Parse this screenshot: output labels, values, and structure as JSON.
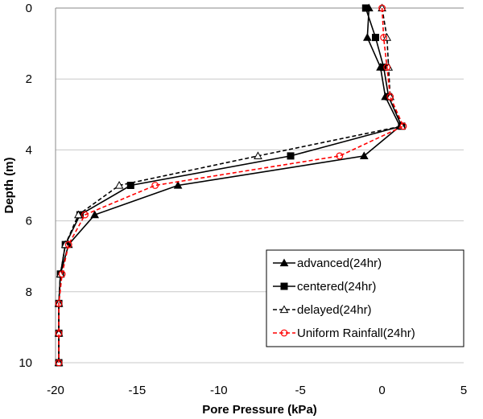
{
  "chart_data": {
    "type": "line",
    "xlabel": "Pore Pressure (kPa)",
    "ylabel": "Depth (m)",
    "xlim": [
      -20,
      5
    ],
    "ylim": [
      0,
      10
    ],
    "y_inverted": true,
    "x_ticks": [
      -20,
      -15,
      -10,
      -5,
      0,
      5
    ],
    "y_ticks": [
      0,
      2,
      4,
      6,
      8,
      10
    ],
    "grid": "horizontal-major",
    "legend_position": "bottom-right",
    "series": [
      {
        "name": "advanced(24hr)",
        "color": "#000000",
        "dash": "solid",
        "marker": "triangle-filled",
        "points": [
          [
            -0.8,
            0
          ],
          [
            -0.9,
            0.83
          ],
          [
            -0.1,
            1.67
          ],
          [
            0.2,
            2.5
          ],
          [
            1.1,
            3.33
          ],
          [
            -1.1,
            4.17
          ],
          [
            -12.5,
            5.0
          ],
          [
            -17.6,
            5.83
          ],
          [
            -19.2,
            6.67
          ],
          [
            -19.7,
            7.5
          ],
          [
            -19.8,
            8.33
          ],
          [
            -19.8,
            9.17
          ],
          [
            -19.8,
            10
          ]
        ]
      },
      {
        "name": "centered(24hr)",
        "color": "#000000",
        "dash": "solid",
        "marker": "square-filled",
        "points": [
          [
            -1.0,
            0
          ],
          [
            -0.4,
            0.83
          ],
          [
            0.1,
            1.67
          ],
          [
            0.4,
            2.5
          ],
          [
            1.2,
            3.33
          ],
          [
            -5.6,
            4.17
          ],
          [
            -15.4,
            5.0
          ],
          [
            -18.5,
            5.83
          ],
          [
            -19.4,
            6.67
          ],
          [
            -19.7,
            7.5
          ],
          [
            -19.8,
            8.33
          ],
          [
            -19.8,
            9.17
          ],
          [
            -19.8,
            10
          ]
        ]
      },
      {
        "name": "delayed(24hr)",
        "color": "#000000",
        "dash": "dashed",
        "marker": "triangle-open",
        "points": [
          [
            0.0,
            0
          ],
          [
            0.3,
            0.83
          ],
          [
            0.4,
            1.67
          ],
          [
            0.5,
            2.5
          ],
          [
            1.2,
            3.33
          ],
          [
            -7.6,
            4.17
          ],
          [
            -16.1,
            5.0
          ],
          [
            -18.6,
            5.83
          ],
          [
            -19.4,
            6.67
          ],
          [
            -19.7,
            7.5
          ],
          [
            -19.8,
            8.33
          ],
          [
            -19.8,
            9.17
          ],
          [
            -19.8,
            10
          ]
        ]
      },
      {
        "name": "Uniform Rainfall(24hr)",
        "color": "#ff0000",
        "dash": "dashed",
        "marker": "circle-open",
        "points": [
          [
            0.0,
            0
          ],
          [
            0.1,
            0.83
          ],
          [
            0.3,
            1.67
          ],
          [
            0.5,
            2.5
          ],
          [
            1.3,
            3.33
          ],
          [
            -2.6,
            4.17
          ],
          [
            -13.9,
            5.0
          ],
          [
            -18.2,
            5.83
          ],
          [
            -19.2,
            6.67
          ],
          [
            -19.6,
            7.5
          ],
          [
            -19.8,
            8.33
          ],
          [
            -19.8,
            9.17
          ],
          [
            -19.8,
            10
          ]
        ]
      }
    ]
  }
}
